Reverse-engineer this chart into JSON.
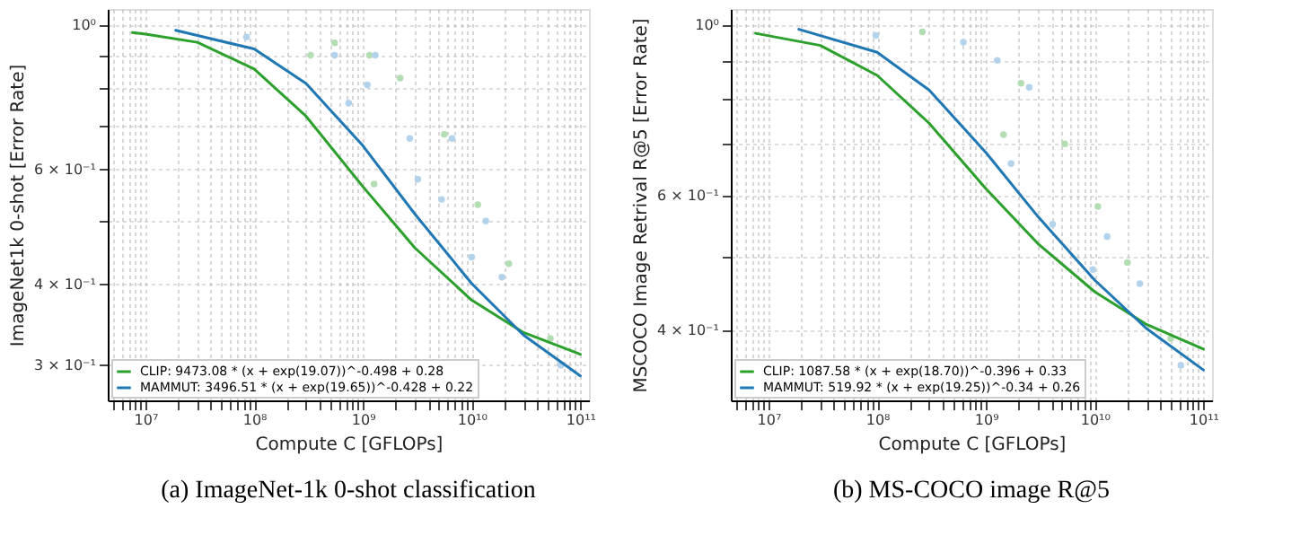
{
  "chart_data": [
    {
      "type": "line",
      "title": "(a) ImageNet-1k 0-shot classification",
      "xlabel": "Compute C [GFLOPs]",
      "ylabel": "ImageNet1k 0-shot [Error Rate]",
      "log": "xy",
      "grid": true,
      "legend": "bottom left",
      "line_style": "solid",
      "marker": "none",
      "xlim": [
        4500000,
        120000000000
      ],
      "ylim": [
        0.265,
        1.06
      ],
      "xticks": [
        {
          "value": 5000000,
          "label": null
        },
        {
          "value": 6000000,
          "label": null
        },
        {
          "value": 7000000,
          "label": null
        },
        {
          "value": 8000000,
          "label": null
        },
        {
          "value": 9000000,
          "label": null
        },
        {
          "value": 10000000,
          "label": "10⁷"
        },
        {
          "value": 20000000,
          "label": null
        },
        {
          "value": 30000000,
          "label": null
        },
        {
          "value": 40000000,
          "label": null
        },
        {
          "value": 50000000,
          "label": null
        },
        {
          "value": 60000000,
          "label": null
        },
        {
          "value": 70000000,
          "label": null
        },
        {
          "value": 80000000,
          "label": null
        },
        {
          "value": 90000000,
          "label": null
        },
        {
          "value": 100000000,
          "label": "10⁸"
        },
        {
          "value": 200000000,
          "label": null
        },
        {
          "value": 300000000,
          "label": null
        },
        {
          "value": 400000000,
          "label": null
        },
        {
          "value": 500000000,
          "label": null
        },
        {
          "value": 600000000,
          "label": null
        },
        {
          "value": 700000000,
          "label": null
        },
        {
          "value": 800000000,
          "label": null
        },
        {
          "value": 900000000,
          "label": null
        },
        {
          "value": 1000000000,
          "label": "10⁹"
        },
        {
          "value": 2000000000,
          "label": null
        },
        {
          "value": 3000000000,
          "label": null
        },
        {
          "value": 4000000000,
          "label": null
        },
        {
          "value": 5000000000,
          "label": null
        },
        {
          "value": 6000000000,
          "label": null
        },
        {
          "value": 7000000000,
          "label": null
        },
        {
          "value": 8000000000,
          "label": null
        },
        {
          "value": 9000000000,
          "label": null
        },
        {
          "value": 10000000000,
          "label": "10¹⁰"
        },
        {
          "value": 20000000000,
          "label": null
        },
        {
          "value": 30000000000,
          "label": null
        },
        {
          "value": 40000000000,
          "label": null
        },
        {
          "value": 50000000000,
          "label": null
        },
        {
          "value": 60000000000,
          "label": null
        },
        {
          "value": 70000000000,
          "label": null
        },
        {
          "value": 80000000000,
          "label": null
        },
        {
          "value": 90000000000,
          "label": null
        },
        {
          "value": 100000000000,
          "label": "10¹¹"
        }
      ],
      "yticks": [
        {
          "value": 1,
          "label": "10⁰"
        },
        {
          "value": 0.9,
          "label": null
        },
        {
          "value": 0.8,
          "label": null
        },
        {
          "value": 0.7,
          "label": null
        },
        {
          "value": 0.6,
          "label": "6 × 10⁻¹"
        },
        {
          "value": 0.5,
          "label": null
        },
        {
          "value": 0.4,
          "label": "4 × 10⁻¹"
        },
        {
          "value": 0.3,
          "label": "3 × 10⁻¹"
        }
      ],
      "series": [
        {
          "type": "scatter",
          "marker": "circle",
          "color": "#b3ddb3",
          "x": [
            330000000,
            550000000,
            1150000000,
            1270000000,
            2200000000,
            5600000000,
            11400000000,
            22000000000,
            53000000000
          ],
          "values": [
            0.9,
            0.94,
            0.9,
            0.57,
            0.83,
            0.68,
            0.53,
            0.43,
            0.33
          ]
        },
        {
          "type": "scatter",
          "marker": "circle",
          "color": "#b3d3ec",
          "x": [
            85000000,
            550000000,
            740000000,
            1100000000,
            1300000000,
            2700000000,
            3200000000,
            5300000000,
            6600000000,
            10000000000,
            13500000000,
            19000000000,
            66000000000
          ],
          "values": [
            0.96,
            0.9,
            0.76,
            0.81,
            0.9,
            0.67,
            0.58,
            0.54,
            0.67,
            0.44,
            0.5,
            0.41,
            0.3
          ]
        },
        {
          "name": "CLIP: 9473.08 * (x + exp(19.07))^-0.498 + 0.28",
          "color": "#2ca02c",
          "x": [
            7600000,
            10000000,
            30000000,
            100000000,
            300000000,
            1000000000,
            3000000000,
            10000000000,
            30000000000,
            100000000000
          ],
          "values": [
            0.975,
            0.97,
            0.942,
            0.857,
            0.725,
            0.565,
            0.455,
            0.378,
            0.337,
            0.312
          ]
        },
        {
          "name": "MAMMUT: 3496.51 * (x + exp(19.65))^-0.428 + 0.22",
          "color": "#1f77b4",
          "x": [
            19000000,
            100000000,
            300000000,
            1000000000,
            3000000000,
            10000000000,
            30000000000,
            100000000000
          ],
          "values": [
            0.983,
            0.92,
            0.814,
            0.653,
            0.513,
            0.401,
            0.334,
            0.289
          ]
        }
      ]
    },
    {
      "type": "line",
      "title": "(b) MS-COCO image R@5",
      "xlabel": "Compute C [GFLOPs]",
      "ylabel": "MSCOCO Image Retrival R@5 [Error Rate]",
      "log": "xy",
      "grid": true,
      "legend": "bottom left",
      "line_style": "solid",
      "marker": "none",
      "xlim": [
        4500000,
        120000000000
      ],
      "ylim": [
        0.324,
        1.05
      ],
      "xticks": [
        {
          "value": 5000000,
          "label": null
        },
        {
          "value": 6000000,
          "label": null
        },
        {
          "value": 7000000,
          "label": null
        },
        {
          "value": 8000000,
          "label": null
        },
        {
          "value": 9000000,
          "label": null
        },
        {
          "value": 10000000,
          "label": "10⁷"
        },
        {
          "value": 20000000,
          "label": null
        },
        {
          "value": 30000000,
          "label": null
        },
        {
          "value": 40000000,
          "label": null
        },
        {
          "value": 50000000,
          "label": null
        },
        {
          "value": 60000000,
          "label": null
        },
        {
          "value": 70000000,
          "label": null
        },
        {
          "value": 80000000,
          "label": null
        },
        {
          "value": 90000000,
          "label": null
        },
        {
          "value": 100000000,
          "label": "10⁸"
        },
        {
          "value": 200000000,
          "label": null
        },
        {
          "value": 300000000,
          "label": null
        },
        {
          "value": 400000000,
          "label": null
        },
        {
          "value": 500000000,
          "label": null
        },
        {
          "value": 600000000,
          "label": null
        },
        {
          "value": 700000000,
          "label": null
        },
        {
          "value": 800000000,
          "label": null
        },
        {
          "value": 900000000,
          "label": null
        },
        {
          "value": 1000000000,
          "label": "10⁹"
        },
        {
          "value": 2000000000,
          "label": null
        },
        {
          "value": 3000000000,
          "label": null
        },
        {
          "value": 4000000000,
          "label": null
        },
        {
          "value": 5000000000,
          "label": null
        },
        {
          "value": 6000000000,
          "label": null
        },
        {
          "value": 7000000000,
          "label": null
        },
        {
          "value": 8000000000,
          "label": null
        },
        {
          "value": 9000000000,
          "label": null
        },
        {
          "value": 10000000000,
          "label": "10¹⁰"
        },
        {
          "value": 20000000000,
          "label": null
        },
        {
          "value": 30000000000,
          "label": null
        },
        {
          "value": 40000000000,
          "label": null
        },
        {
          "value": 50000000000,
          "label": null
        },
        {
          "value": 60000000000,
          "label": null
        },
        {
          "value": 70000000000,
          "label": null
        },
        {
          "value": 80000000000,
          "label": null
        },
        {
          "value": 90000000000,
          "label": null
        },
        {
          "value": 100000000000,
          "label": "10¹¹"
        }
      ],
      "yticks": [
        {
          "value": 1,
          "label": "10⁰"
        },
        {
          "value": 0.9,
          "label": null
        },
        {
          "value": 0.8,
          "label": null
        },
        {
          "value": 0.7,
          "label": null
        },
        {
          "value": 0.6,
          "label": "6 × 10⁻¹"
        },
        {
          "value": 0.5,
          "label": null
        },
        {
          "value": 0.4,
          "label": "4 × 10⁻¹"
        }
      ],
      "series": [
        {
          "type": "scatter",
          "marker": "circle",
          "color": "#b3ddb3",
          "x": [
            260000000,
            1450000000,
            2100000000,
            5300000000,
            10700000000,
            20000000000,
            50000000000
          ],
          "values": [
            0.98,
            0.72,
            0.84,
            0.7,
            0.58,
            0.49,
            0.39
          ]
        },
        {
          "type": "scatter",
          "marker": "circle",
          "color": "#b3d3ec",
          "x": [
            97000000,
            620000000,
            1270000000,
            1700000000,
            2500000000,
            4100000000,
            9600000000,
            13000000000,
            26000000000,
            62000000000
          ],
          "values": [
            0.97,
            0.95,
            0.9,
            0.66,
            0.83,
            0.55,
            0.48,
            0.53,
            0.46,
            0.36
          ]
        },
        {
          "name": "CLIP: 1087.58 * (x + exp(18.70))^-0.396 + 0.33",
          "color": "#2ca02c",
          "x": [
            7600000,
            30000000,
            100000000,
            300000000,
            1000000000,
            3000000000,
            10000000000,
            30000000000,
            100000000000
          ],
          "values": [
            0.976,
            0.941,
            0.86,
            0.745,
            0.612,
            0.519,
            0.449,
            0.407,
            0.378
          ]
        },
        {
          "name": "MAMMUT: 519.92 * (x + exp(19.25))^-0.34 + 0.26",
          "color": "#1f77b4",
          "x": [
            19000000,
            100000000,
            300000000,
            1000000000,
            3000000000,
            10000000000,
            30000000000,
            100000000000
          ],
          "values": [
            0.988,
            0.922,
            0.823,
            0.682,
            0.563,
            0.465,
            0.402,
            0.355
          ]
        }
      ]
    }
  ]
}
